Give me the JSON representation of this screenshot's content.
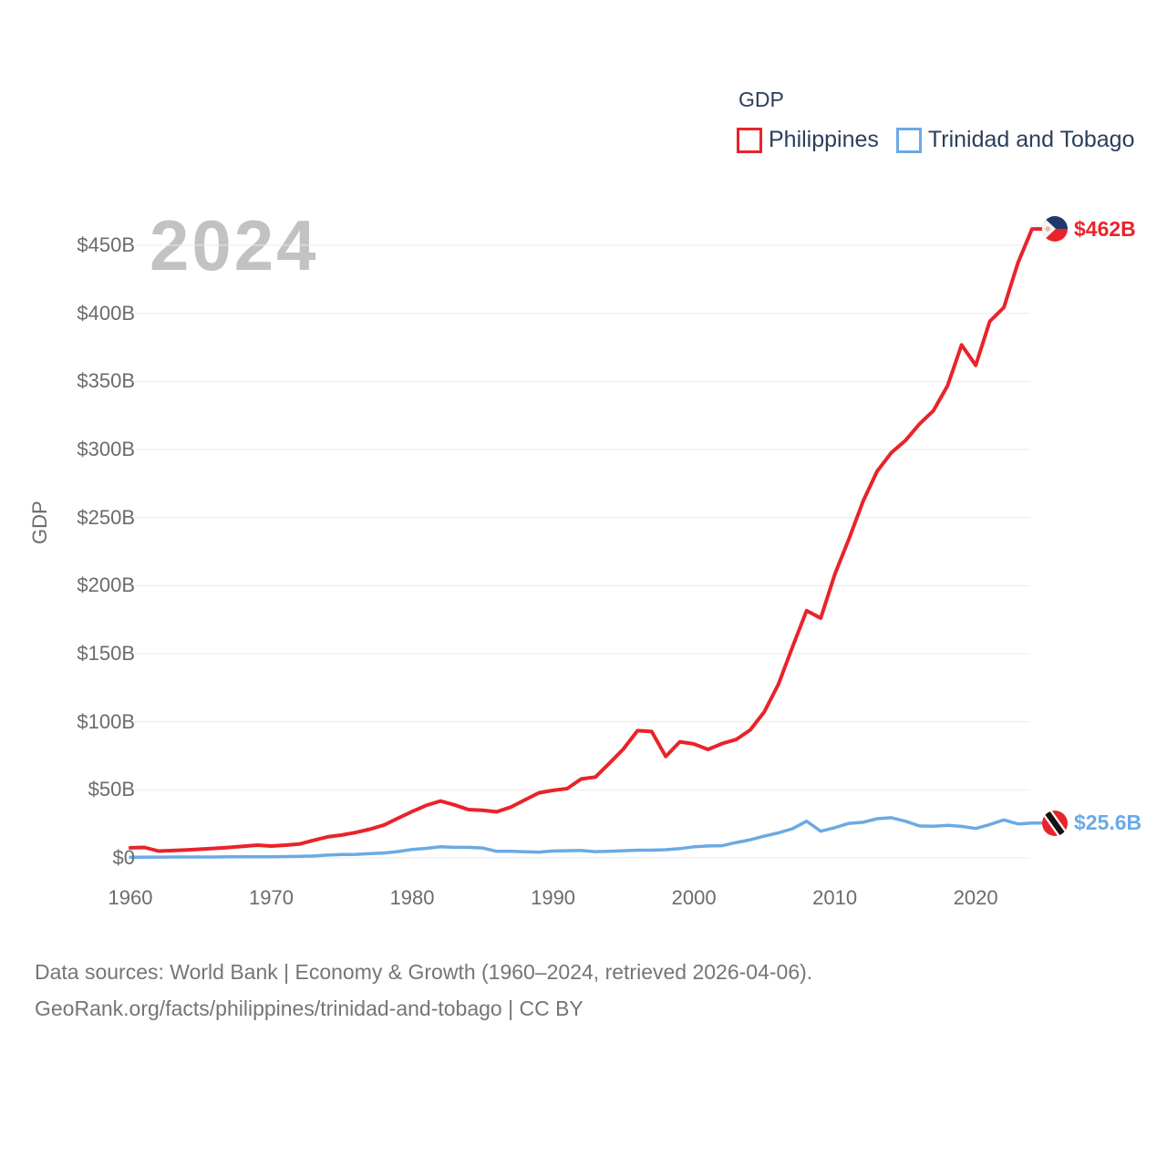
{
  "legend": {
    "title": "GDP",
    "items": [
      {
        "label": "Philippines",
        "color": "#e9232b"
      },
      {
        "label": "Trinidad and Tobago",
        "color": "#6aaae4"
      }
    ]
  },
  "watermark": "2024",
  "colors": {
    "axis_text": "#6b6b6b",
    "grid": "#ebebeb",
    "watermark": "#c2c2c2",
    "legend_text": "#2c3e5d",
    "footer_text": "#757575",
    "philippines": "#e9232b",
    "trinidad_and_tobago": "#6aaae4"
  },
  "chart_data": {
    "type": "line",
    "title": "GDP",
    "xlabel": "",
    "ylabel": "GDP",
    "ylim": [
      0,
      450
    ],
    "xlim": [
      1960,
      2024
    ],
    "grid": "horizontal",
    "legend_position": "top-right",
    "y_ticks": [
      "$0",
      "$50B",
      "$100B",
      "$150B",
      "$200B",
      "$250B",
      "$300B",
      "$350B",
      "$400B",
      "$450B"
    ],
    "y_tick_values": [
      0,
      50,
      100,
      150,
      200,
      250,
      300,
      350,
      400,
      450
    ],
    "x_ticks": [
      "1960",
      "1970",
      "1980",
      "1990",
      "2000",
      "2010",
      "2020"
    ],
    "x_tick_values": [
      1960,
      1970,
      1980,
      1990,
      2000,
      2010,
      2020
    ],
    "x": [
      1960,
      1961,
      1962,
      1963,
      1964,
      1965,
      1966,
      1967,
      1968,
      1969,
      1970,
      1971,
      1972,
      1973,
      1974,
      1975,
      1976,
      1977,
      1978,
      1979,
      1980,
      1981,
      1982,
      1983,
      1984,
      1985,
      1986,
      1987,
      1988,
      1989,
      1990,
      1991,
      1992,
      1993,
      1994,
      1995,
      1996,
      1997,
      1998,
      1999,
      2000,
      2001,
      2002,
      2003,
      2004,
      2005,
      2006,
      2007,
      2008,
      2009,
      2010,
      2011,
      2012,
      2013,
      2014,
      2015,
      2016,
      2017,
      2018,
      2019,
      2020,
      2021,
      2022,
      2023,
      2024
    ],
    "series": [
      {
        "name": "Philippines",
        "color": "#e9232b",
        "end_label": "$462B",
        "flag_icon": "philippines-flag-icon",
        "values": [
          7.4,
          7.7,
          5.0,
          5.4,
          5.9,
          6.4,
          7.0,
          7.7,
          8.6,
          9.4,
          8.7,
          9.4,
          10.2,
          12.9,
          15.5,
          16.8,
          18.7,
          21.1,
          24.2,
          29.2,
          34.1,
          38.6,
          41.8,
          39.0,
          35.5,
          35.0,
          33.9,
          37.3,
          42.6,
          47.8,
          49.6,
          50.9,
          58.0,
          59.4,
          69.5,
          80.1,
          93.5,
          92.8,
          74.5,
          85.3,
          83.7,
          79.7,
          84.0,
          87.0,
          94.0,
          107.4,
          127.6,
          155.1,
          181.6,
          176.1,
          208.4,
          234.2,
          261.9,
          283.9,
          297.5,
          306.4,
          318.6,
          328.5,
          346.8,
          376.8,
          361.8,
          394.1,
          404.3,
          437.1,
          462.0
        ]
      },
      {
        "name": "Trinidad and Tobago",
        "color": "#6aaae4",
        "end_label": "$25.6B",
        "flag_icon": "trinidad-and-tobago-flag-icon",
        "values": [
          0.5,
          0.6,
          0.6,
          0.7,
          0.7,
          0.7,
          0.7,
          0.8,
          0.8,
          0.8,
          0.9,
          1.0,
          1.2,
          1.4,
          2.1,
          2.5,
          2.6,
          3.2,
          3.6,
          4.7,
          6.2,
          7.0,
          8.2,
          7.8,
          7.8,
          7.3,
          4.8,
          4.8,
          4.5,
          4.3,
          5.1,
          5.3,
          5.4,
          4.6,
          4.9,
          5.3,
          5.7,
          5.7,
          6.0,
          6.8,
          8.2,
          8.8,
          9.0,
          11.3,
          13.3,
          16.0,
          18.4,
          21.5,
          27.0,
          19.6,
          22.2,
          25.4,
          26.2,
          28.8,
          29.5,
          27.0,
          23.5,
          23.3,
          24.0,
          23.2,
          21.6,
          24.5,
          27.9,
          25.0,
          25.6
        ]
      }
    ]
  },
  "footer": {
    "line1": "Data sources: World Bank | Economy & Growth (1960–2024, retrieved 2026-04-06).",
    "line2": "GeoRank.org/facts/philippines/trinidad-and-tobago | CC BY"
  }
}
